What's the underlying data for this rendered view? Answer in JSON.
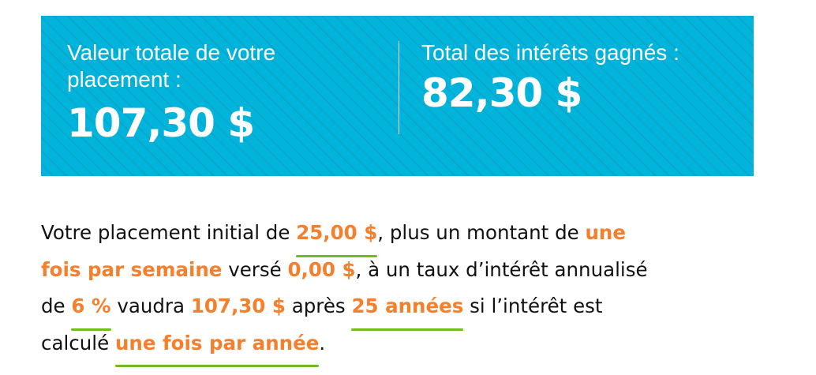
{
  "summary": {
    "total_value_label": "Valeur totale de votre placement :",
    "total_value": "107,30 $",
    "interest_label": "Total des intérêts gagnés :",
    "interest_value": "82,30 $"
  },
  "colors": {
    "panel": "#00b4dc",
    "highlight": "#f47f2c",
    "underline": "#6dbe1e"
  },
  "sentence": {
    "t1": "Votre placement initial de ",
    "initial": "25,00 $",
    "t2": ", plus un montant de ",
    "freq_a": "une",
    "freq_b": "fois par semaine",
    "t3": " versé ",
    "contribution": "0,00 $",
    "t4": ", à un taux d’intérêt annualisé",
    "t5": "de ",
    "rate": "6 %",
    "t6": " vaudra ",
    "final": "107,30 $",
    "t7": " après ",
    "years": "25 années",
    "t8": " si l’intérêt est",
    "t9": "calculé ",
    "compounding": "une fois par année",
    "t10": "."
  }
}
